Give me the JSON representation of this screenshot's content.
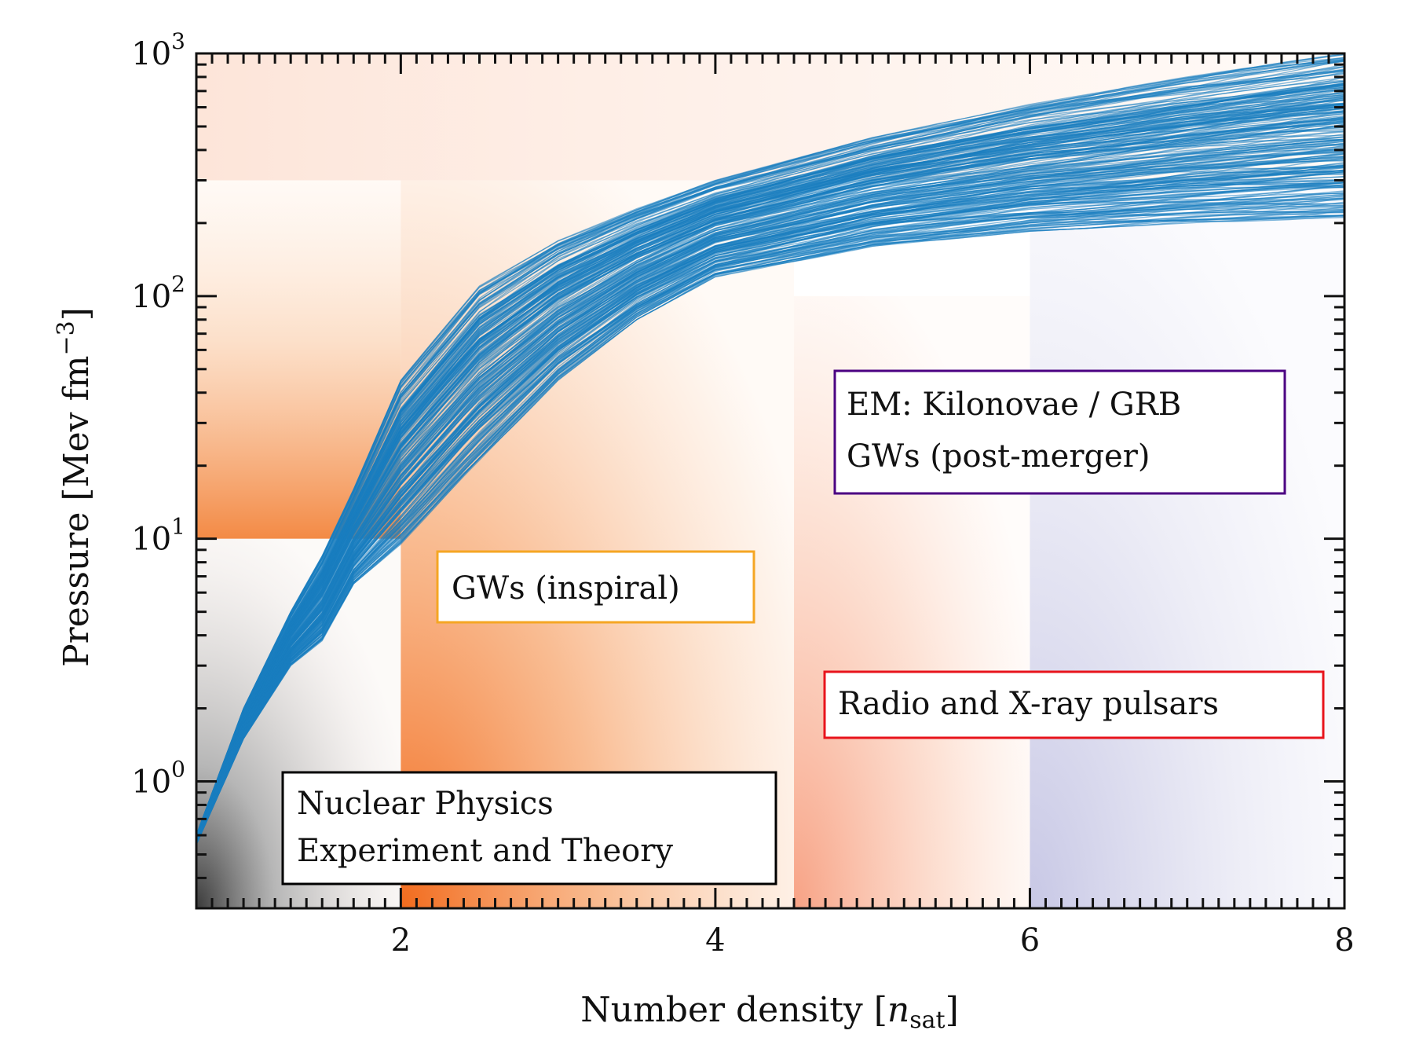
{
  "chart_data": {
    "type": "line",
    "xlabel": "Number density",
    "xunit": "n",
    "xunit_sub": "sat",
    "ylabel": "Pressure [Mev fm",
    "ylabel_exp": "−3",
    "ylabel_close": "]",
    "xlim": [
      0.7,
      8
    ],
    "ylim": [
      0.3,
      1000
    ],
    "yscale": "log",
    "x_ticks": [
      2,
      4,
      6,
      8
    ],
    "x_tick_labels": [
      "2",
      "4",
      "6",
      "8"
    ],
    "y_ticks": [
      1,
      10,
      100,
      1000
    ],
    "y_tick_labels": [
      {
        "base": "10",
        "exp": "0"
      },
      {
        "base": "10",
        "exp": "1"
      },
      {
        "base": "10",
        "exp": "2"
      },
      {
        "base": "10",
        "exp": "3"
      }
    ],
    "series_color": "#1a7dc0",
    "band_low": [
      [
        0.7,
        0.55
      ],
      [
        1.0,
        1.5
      ],
      [
        1.3,
        3.0
      ],
      [
        1.5,
        3.8
      ],
      [
        1.7,
        6.5
      ],
      [
        2.0,
        9.5
      ],
      [
        2.4,
        18
      ],
      [
        3.0,
        45
      ],
      [
        3.5,
        80
      ],
      [
        4.0,
        120
      ],
      [
        5.0,
        160
      ],
      [
        6.0,
        185
      ],
      [
        7.0,
        200
      ],
      [
        8.0,
        210
      ]
    ],
    "band_high": [
      [
        0.7,
        0.6
      ],
      [
        1.0,
        2.0
      ],
      [
        1.3,
        5.0
      ],
      [
        1.5,
        8.5
      ],
      [
        1.7,
        16
      ],
      [
        2.0,
        45
      ],
      [
        2.5,
        110
      ],
      [
        3.0,
        170
      ],
      [
        3.5,
        230
      ],
      [
        4.0,
        300
      ],
      [
        5.0,
        450
      ],
      [
        6.0,
        620
      ],
      [
        7.0,
        800
      ],
      [
        8.0,
        1000
      ]
    ],
    "regions": [
      {
        "name": "nuclear",
        "x": [
          0.7,
          2.0
        ],
        "y": [
          0.3,
          10
        ],
        "color": "#000000"
      },
      {
        "name": "gw-inspiral",
        "x": [
          2.0,
          4.5
        ],
        "y": [
          0.3,
          300
        ],
        "color": "#f26b1d"
      },
      {
        "name": "pulsars",
        "x": [
          4.5,
          6.0
        ],
        "y": [
          0.3,
          100
        ],
        "color": "#f47a50"
      },
      {
        "name": "post-merger",
        "x": [
          6.0,
          8.0
        ],
        "y": [
          0.3,
          100
        ],
        "color": "#9a9ad0"
      }
    ],
    "annotations": [
      {
        "lines": [
          "EM: Kilonovae / GRB",
          "GWs (post-merger)"
        ],
        "border": "#4b0082"
      },
      {
        "lines": [
          "GWs (inspiral)"
        ],
        "border": "#f5a623"
      },
      {
        "lines": [
          "Radio and X-ray pulsars"
        ],
        "border": "#e8141c"
      },
      {
        "lines": [
          "Nuclear Physics",
          "Experiment and Theory"
        ],
        "border": "#000000"
      }
    ]
  }
}
